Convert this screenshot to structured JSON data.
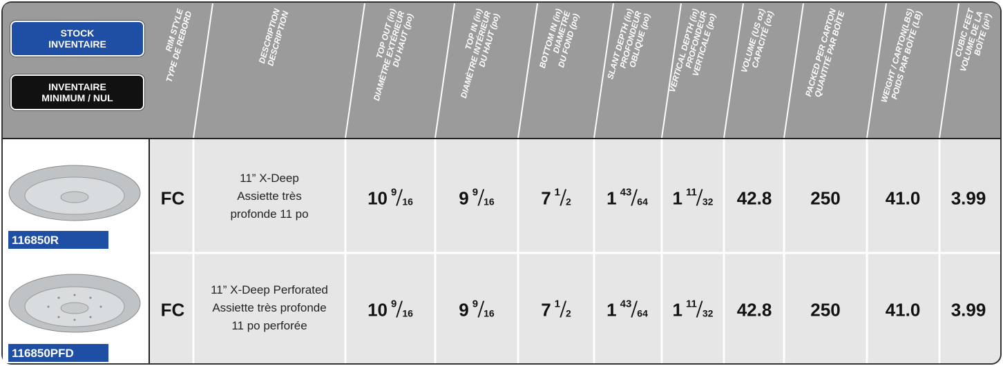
{
  "legend": {
    "stock": [
      "STOCK",
      "INVENTAIRE"
    ],
    "minimum": [
      "INVENTAIRE",
      "MINIMUM / NUL"
    ]
  },
  "columns": [
    [
      "RIM STYLE",
      "TYPE DE REBORD"
    ],
    [
      "DESCRIPTION",
      "DESCRIPTION"
    ],
    [
      "TOP OUT (in)",
      "DIAMÈTRE EXTÉRIEUR",
      "DU HAUT (po)"
    ],
    [
      "TOP IN (in)",
      "DIAMÈTRE INTÉRIEUR",
      "DU HAUT (po)"
    ],
    [
      "BOTTOM IN (in)",
      "DIAMETRE",
      "DU FOND (po)"
    ],
    [
      "SLANT DEPTH (in)",
      "PROFONDEUR",
      "OBLIQUE (po)"
    ],
    [
      "VERTICAL DEPTH (in)",
      "PROFONDEUR",
      "VERTICALE (po)"
    ],
    [
      "VOLUME (US oz)",
      "CAPACITÉ (oz)"
    ],
    [
      "PACKED PER CARTON",
      "QUANTITÉ PAR BOÎTE"
    ],
    [
      "WEIGHT / CARTON(LBS)",
      "POIDS PAR BOÎTE (LB)"
    ],
    [
      "CUBIC FEET",
      "VOLUME DE LA",
      "BOÎTE (pi³)"
    ]
  ],
  "rows": [
    {
      "sku": "116850R",
      "rim": "FC",
      "description": [
        "11” X-Deep",
        "Assiette très",
        "profonde 11 po"
      ],
      "top_out": {
        "whole": "10",
        "num": "9",
        "den": "16"
      },
      "top_in": {
        "whole": "9",
        "num": "9",
        "den": "16"
      },
      "bottom": {
        "whole": "7",
        "num": "1",
        "den": "2"
      },
      "slant": {
        "whole": "1",
        "num": "43",
        "den": "64"
      },
      "vertical": {
        "whole": "1",
        "num": "11",
        "den": "32"
      },
      "volume": "42.8",
      "packed": "250",
      "weight": "41.0",
      "cubic": "3.99"
    },
    {
      "sku": "116850PFD",
      "rim": "FC",
      "description": [
        "11” X-Deep Perforated",
        "Assiette très profonde",
        "11 po perforée"
      ],
      "top_out": {
        "whole": "10",
        "num": "9",
        "den": "16"
      },
      "top_in": {
        "whole": "9",
        "num": "9",
        "den": "16"
      },
      "bottom": {
        "whole": "7",
        "num": "1",
        "den": "2"
      },
      "slant": {
        "whole": "1",
        "num": "43",
        "den": "64"
      },
      "vertical": {
        "whole": "1",
        "num": "11",
        "den": "32"
      },
      "volume": "42.8",
      "packed": "250",
      "weight": "41.0",
      "cubic": "3.99"
    }
  ]
}
